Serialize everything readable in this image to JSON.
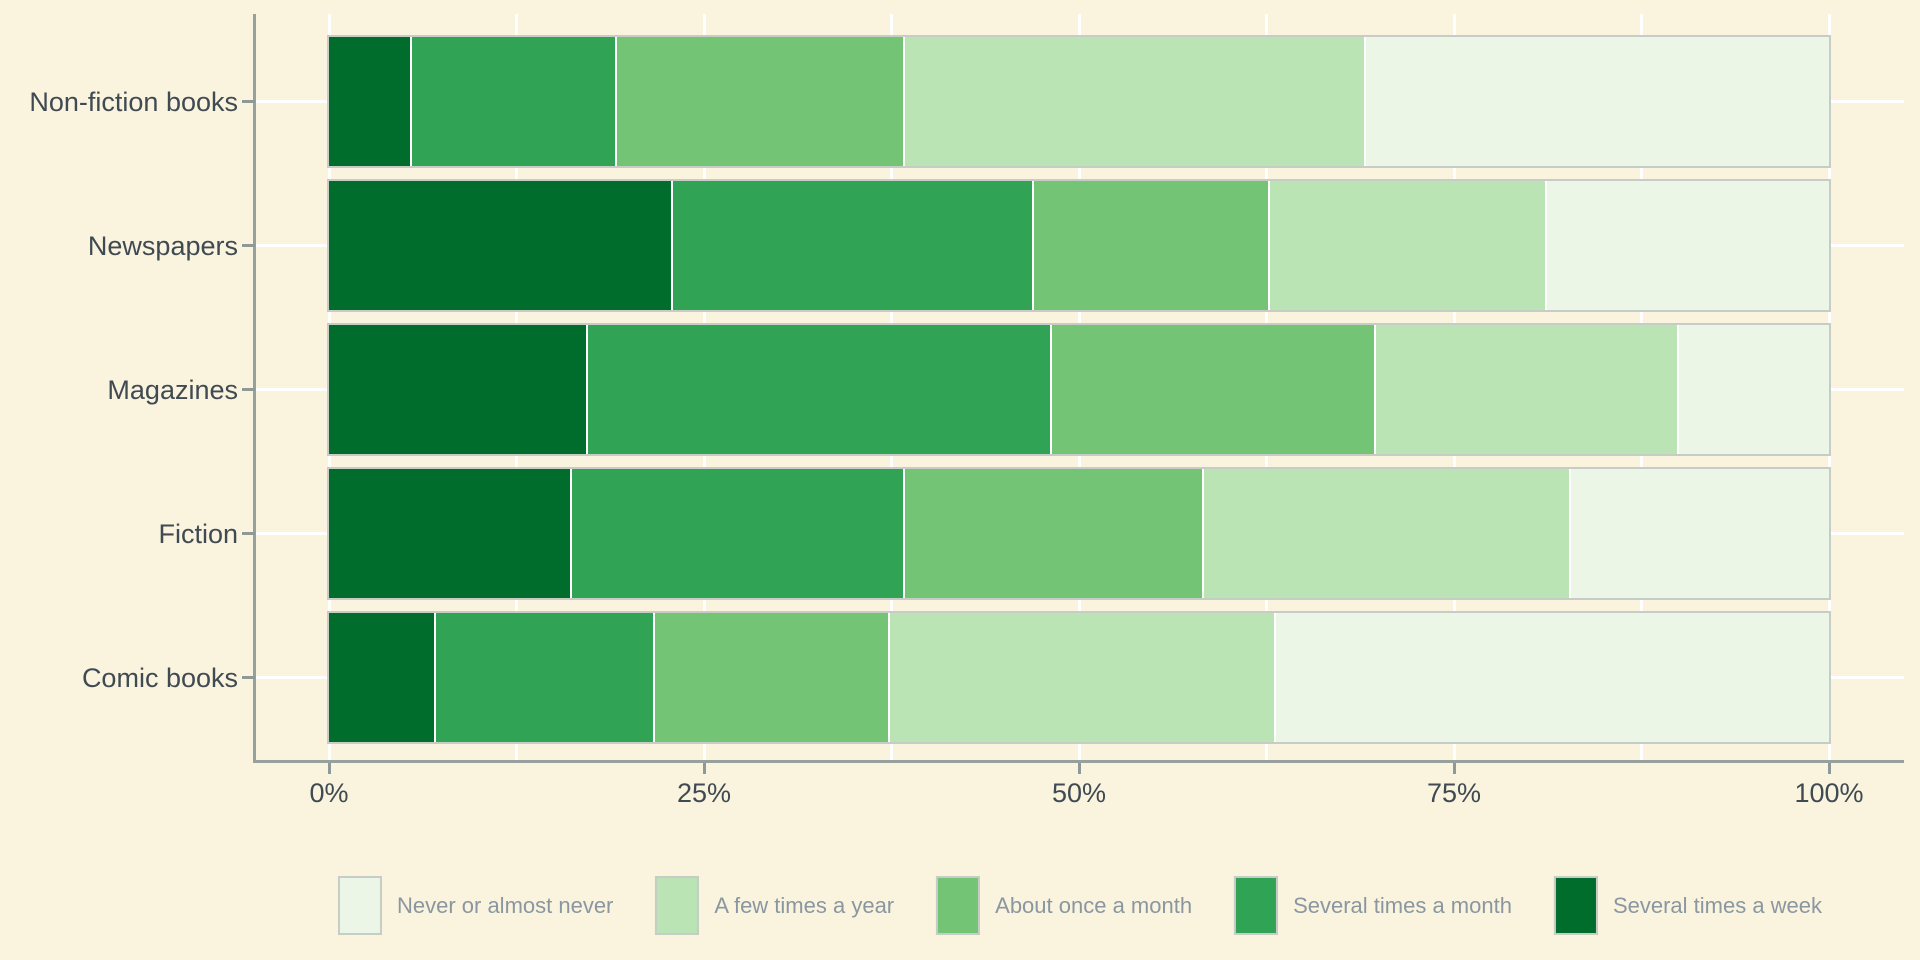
{
  "chart_data": {
    "type": "bar",
    "orientation": "horizontal",
    "stacked": true,
    "unit": "percent",
    "title": "",
    "categories": [
      "Non-fiction books",
      "Newspapers",
      "Magazines",
      "Fiction",
      "Comic books"
    ],
    "series": [
      {
        "name": "Several times a week",
        "color": "#006d2c",
        "values": [
          5.5,
          22.9,
          17.3,
          16.2,
          7.1
        ]
      },
      {
        "name": "Several times a month",
        "color": "#31a354",
        "values": [
          13.7,
          24.1,
          30.9,
          22.2,
          14.6
        ]
      },
      {
        "name": "About once a month",
        "color": "#74c476",
        "values": [
          19.2,
          15.7,
          21.6,
          19.9,
          15.7
        ]
      },
      {
        "name": "A few times a year",
        "color": "#bae4b3",
        "values": [
          30.7,
          18.5,
          20.2,
          24.5,
          25.7
        ]
      },
      {
        "name": "Never or almost never",
        "color": "#ecf6e7",
        "values": [
          30.9,
          18.8,
          10.0,
          17.2,
          36.9
        ]
      }
    ],
    "legend_order": [
      "Never or almost never",
      "A few times a year",
      "About once a month",
      "Several times a month",
      "Several times a week"
    ],
    "legend_position": "bottom",
    "x_tick_labels": [
      "0%",
      "25%",
      "50%",
      "75%",
      "100%"
    ],
    "x_tick_values": [
      0,
      25,
      50,
      75,
      100
    ],
    "xlim": [
      0,
      100
    ],
    "grid": {
      "vertical_interval_pct": 12.5,
      "horizontal_at_category_centers": true
    }
  },
  "style": {
    "background_color": "#faf3de",
    "grid_color": "#ffffff",
    "axis_line_color": "#96a09d",
    "tick_color": "#8d9a97",
    "axis_text_color": "#3f4a52",
    "legend_text_color": "#8a97a1",
    "bar_border_color": "#c7ccc6",
    "segment_divider_color": "#ffffff"
  }
}
